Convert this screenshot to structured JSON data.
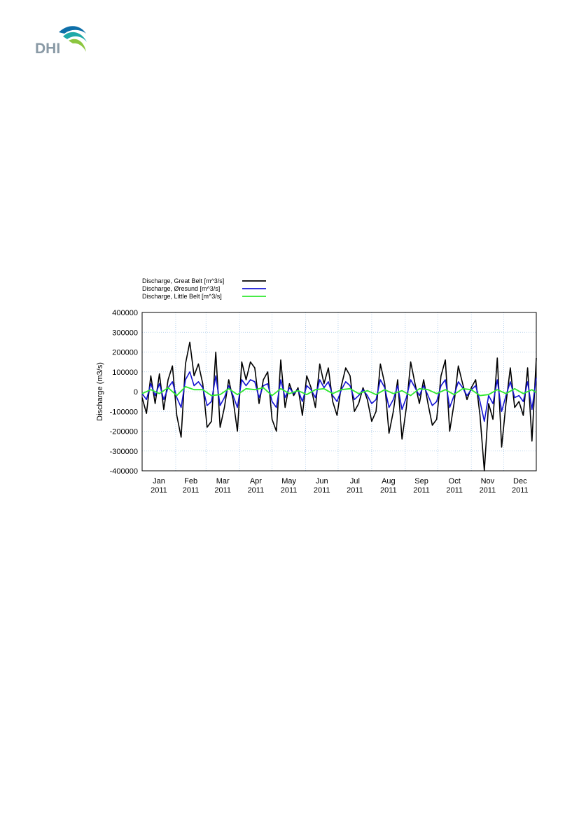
{
  "logo": {
    "text": "DHI",
    "colors": [
      "#8cc63f",
      "#1fa9a8",
      "#0e6fa9"
    ]
  },
  "chart_data": {
    "type": "line",
    "title": "",
    "xlabel": "",
    "ylabel": "Discharge (m3/s)",
    "ylim": [
      -400000,
      400000
    ],
    "yticks": [
      "400000",
      "300000",
      "200000",
      "100000",
      "0",
      "-100000",
      "-200000",
      "-300000",
      "-400000"
    ],
    "xlim": [
      "2011-01-01",
      "2011-12-31"
    ],
    "xticks": [
      {
        "date": "2011-01-01",
        "month": "Jan",
        "year": "2011"
      },
      {
        "date": "2011-02-01",
        "month": "Feb",
        "year": "2011"
      },
      {
        "date": "2011-03-01",
        "month": "Mar",
        "year": "2011"
      },
      {
        "date": "2011-04-01",
        "month": "Apr",
        "year": "2011"
      },
      {
        "date": "2011-05-01",
        "month": "May",
        "year": "2011"
      },
      {
        "date": "2011-06-01",
        "month": "Jun",
        "year": "2011"
      },
      {
        "date": "2011-07-01",
        "month": "Jul",
        "year": "2011"
      },
      {
        "date": "2011-08-01",
        "month": "Aug",
        "year": "2011"
      },
      {
        "date": "2011-09-01",
        "month": "Sep",
        "year": "2011"
      },
      {
        "date": "2011-10-01",
        "month": "Oct",
        "year": "2011"
      },
      {
        "date": "2011-11-01",
        "month": "Nov",
        "year": "2011"
      },
      {
        "date": "2011-12-01",
        "month": "Dec",
        "year": "2011"
      }
    ],
    "grid": true,
    "legend_position": "top-left",
    "series": [
      {
        "name": "Discharge, Great Belt [m^3/s]",
        "color": "#000000",
        "x": [
          "2011-01-01",
          "2011-01-05",
          "2011-01-09",
          "2011-01-13",
          "2011-01-17",
          "2011-01-21",
          "2011-01-25",
          "2011-01-29",
          "2011-02-02",
          "2011-02-06",
          "2011-02-10",
          "2011-02-14",
          "2011-02-18",
          "2011-02-22",
          "2011-02-26",
          "2011-03-02",
          "2011-03-06",
          "2011-03-10",
          "2011-03-14",
          "2011-03-18",
          "2011-03-22",
          "2011-03-26",
          "2011-03-30",
          "2011-04-03",
          "2011-04-07",
          "2011-04-11",
          "2011-04-15",
          "2011-04-19",
          "2011-04-23",
          "2011-04-27",
          "2011-05-01",
          "2011-05-05",
          "2011-05-09",
          "2011-05-13",
          "2011-05-17",
          "2011-05-21",
          "2011-05-25",
          "2011-05-29",
          "2011-06-02",
          "2011-06-06",
          "2011-06-10",
          "2011-06-14",
          "2011-06-18",
          "2011-06-22",
          "2011-06-26",
          "2011-06-30",
          "2011-07-04",
          "2011-07-08",
          "2011-07-12",
          "2011-07-16",
          "2011-07-20",
          "2011-07-24",
          "2011-07-28",
          "2011-08-01",
          "2011-08-05",
          "2011-08-09",
          "2011-08-13",
          "2011-08-17",
          "2011-08-21",
          "2011-08-25",
          "2011-08-29",
          "2011-09-02",
          "2011-09-06",
          "2011-09-10",
          "2011-09-14",
          "2011-09-18",
          "2011-09-22",
          "2011-09-26",
          "2011-09-30",
          "2011-10-04",
          "2011-10-08",
          "2011-10-12",
          "2011-10-16",
          "2011-10-20",
          "2011-10-24",
          "2011-10-28",
          "2011-11-01",
          "2011-11-05",
          "2011-11-09",
          "2011-11-13",
          "2011-11-17",
          "2011-11-21",
          "2011-11-25",
          "2011-11-29",
          "2011-12-03",
          "2011-12-07",
          "2011-12-11",
          "2011-12-15",
          "2011-12-19",
          "2011-12-23",
          "2011-12-27",
          "2011-12-31"
        ],
        "values": [
          -30000,
          -110000,
          80000,
          -60000,
          90000,
          -90000,
          60000,
          130000,
          -120000,
          -230000,
          140000,
          250000,
          80000,
          140000,
          40000,
          -180000,
          -150000,
          200000,
          -180000,
          -80000,
          60000,
          -40000,
          -200000,
          150000,
          60000,
          150000,
          120000,
          -60000,
          60000,
          100000,
          -140000,
          -200000,
          160000,
          -80000,
          40000,
          -20000,
          20000,
          -120000,
          80000,
          20000,
          -80000,
          140000,
          40000,
          120000,
          -50000,
          -120000,
          30000,
          120000,
          80000,
          -100000,
          -60000,
          20000,
          -40000,
          -150000,
          -100000,
          140000,
          40000,
          -210000,
          -100000,
          60000,
          -240000,
          -80000,
          150000,
          40000,
          -60000,
          60000,
          -60000,
          -170000,
          -140000,
          80000,
          160000,
          -200000,
          -60000,
          130000,
          40000,
          -40000,
          20000,
          60000,
          -120000,
          -400000,
          -60000,
          -140000,
          170000,
          -280000,
          -60000,
          120000,
          -80000,
          -50000,
          -120000,
          120000,
          -250000,
          170000
        ]
      },
      {
        "name": "Discharge, Øresund    [m^3/s]",
        "color": "#1414d2",
        "x": [
          "2011-01-01",
          "2011-01-05",
          "2011-01-09",
          "2011-01-13",
          "2011-01-17",
          "2011-01-21",
          "2011-01-25",
          "2011-01-29",
          "2011-02-02",
          "2011-02-06",
          "2011-02-10",
          "2011-02-14",
          "2011-02-18",
          "2011-02-22",
          "2011-02-26",
          "2011-03-02",
          "2011-03-06",
          "2011-03-10",
          "2011-03-14",
          "2011-03-18",
          "2011-03-22",
          "2011-03-26",
          "2011-03-30",
          "2011-04-03",
          "2011-04-07",
          "2011-04-11",
          "2011-04-15",
          "2011-04-19",
          "2011-04-23",
          "2011-04-27",
          "2011-05-01",
          "2011-05-05",
          "2011-05-09",
          "2011-05-13",
          "2011-05-17",
          "2011-05-21",
          "2011-05-25",
          "2011-05-29",
          "2011-06-02",
          "2011-06-06",
          "2011-06-10",
          "2011-06-14",
          "2011-06-18",
          "2011-06-22",
          "2011-06-26",
          "2011-06-30",
          "2011-07-04",
          "2011-07-08",
          "2011-07-12",
          "2011-07-16",
          "2011-07-20",
          "2011-07-24",
          "2011-07-28",
          "2011-08-01",
          "2011-08-05",
          "2011-08-09",
          "2011-08-13",
          "2011-08-17",
          "2011-08-21",
          "2011-08-25",
          "2011-08-29",
          "2011-09-02",
          "2011-09-06",
          "2011-09-10",
          "2011-09-14",
          "2011-09-18",
          "2011-09-22",
          "2011-09-26",
          "2011-09-30",
          "2011-10-04",
          "2011-10-08",
          "2011-10-12",
          "2011-10-16",
          "2011-10-20",
          "2011-10-24",
          "2011-10-28",
          "2011-11-01",
          "2011-11-05",
          "2011-11-09",
          "2011-11-13",
          "2011-11-17",
          "2011-11-21",
          "2011-11-25",
          "2011-11-29",
          "2011-12-03",
          "2011-12-07",
          "2011-12-11",
          "2011-12-15",
          "2011-12-19",
          "2011-12-23",
          "2011-12-27",
          "2011-12-31"
        ],
        "values": [
          -10000,
          -40000,
          40000,
          -20000,
          40000,
          -40000,
          20000,
          50000,
          -30000,
          -80000,
          60000,
          100000,
          30000,
          50000,
          20000,
          -70000,
          -50000,
          80000,
          -70000,
          -30000,
          30000,
          -20000,
          -80000,
          60000,
          30000,
          60000,
          50000,
          -30000,
          30000,
          40000,
          -50000,
          -80000,
          60000,
          -30000,
          20000,
          -10000,
          10000,
          -50000,
          30000,
          10000,
          -30000,
          60000,
          20000,
          50000,
          -20000,
          -50000,
          10000,
          50000,
          30000,
          -40000,
          -20000,
          10000,
          -20000,
          -60000,
          -40000,
          60000,
          20000,
          -80000,
          -40000,
          30000,
          -90000,
          -30000,
          60000,
          20000,
          -20000,
          30000,
          -20000,
          -70000,
          -50000,
          30000,
          60000,
          -80000,
          -20000,
          50000,
          20000,
          -20000,
          10000,
          30000,
          -50000,
          -150000,
          -20000,
          -60000,
          60000,
          -100000,
          -20000,
          50000,
          -30000,
          -20000,
          -50000,
          50000,
          -90000,
          70000
        ]
      },
      {
        "name": "Discharge, Little Belt  [m^3/s]",
        "color": "#2ee82e",
        "x": [
          "2011-01-01",
          "2011-01-09",
          "2011-01-17",
          "2011-01-25",
          "2011-02-02",
          "2011-02-10",
          "2011-02-18",
          "2011-02-26",
          "2011-03-06",
          "2011-03-14",
          "2011-03-22",
          "2011-03-30",
          "2011-04-07",
          "2011-04-15",
          "2011-04-23",
          "2011-05-01",
          "2011-05-09",
          "2011-05-17",
          "2011-05-25",
          "2011-06-02",
          "2011-06-10",
          "2011-06-18",
          "2011-06-26",
          "2011-07-04",
          "2011-07-12",
          "2011-07-20",
          "2011-07-28",
          "2011-08-05",
          "2011-08-13",
          "2011-08-21",
          "2011-08-29",
          "2011-09-06",
          "2011-09-14",
          "2011-09-22",
          "2011-09-30",
          "2011-10-08",
          "2011-10-16",
          "2011-10-24",
          "2011-11-01",
          "2011-11-09",
          "2011-11-17",
          "2011-11-25",
          "2011-12-03",
          "2011-12-11",
          "2011-12-19",
          "2011-12-27",
          "2011-12-31"
        ],
        "values": [
          -10000,
          10000,
          -10000,
          20000,
          -20000,
          25000,
          10000,
          10000,
          -20000,
          -15000,
          15000,
          -15000,
          15000,
          10000,
          20000,
          -20000,
          15000,
          -10000,
          5000,
          -15000,
          10000,
          15000,
          -10000,
          10000,
          15000,
          -10000,
          5000,
          -15000,
          10000,
          -10000,
          5000,
          -20000,
          15000,
          10000,
          -10000,
          10000,
          -15000,
          15000,
          10000,
          -20000,
          -15000,
          10000,
          -10000,
          15000,
          -10000,
          10000,
          -5000
        ]
      }
    ]
  }
}
